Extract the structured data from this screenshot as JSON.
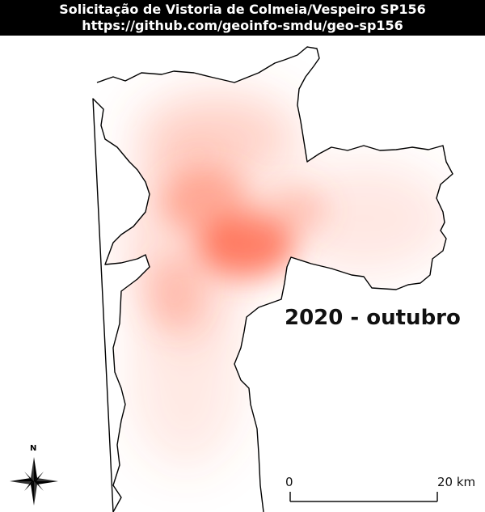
{
  "header": {
    "title": "Solicitação de Vistoria de Colmeia/Vespeiro SP156",
    "url": "https://github.com/geoinfo-smdu/geo-sp156"
  },
  "map": {
    "period_label": "2020 - outubro",
    "heat_color": "#ff6a4a",
    "outline_color": "#000000",
    "hotspots": [
      {
        "place": "center",
        "intensity": 0.95
      },
      {
        "place": "north-center",
        "intensity": 0.6
      },
      {
        "place": "north",
        "intensity": 0.45
      },
      {
        "place": "east",
        "intensity": 0.35
      },
      {
        "place": "south",
        "intensity": 0.3
      }
    ]
  },
  "scale_bar": {
    "start_label": "0",
    "end_label": "20 km"
  },
  "north_arrow": {
    "label": "N",
    "icon": "compass-rose-icon"
  }
}
